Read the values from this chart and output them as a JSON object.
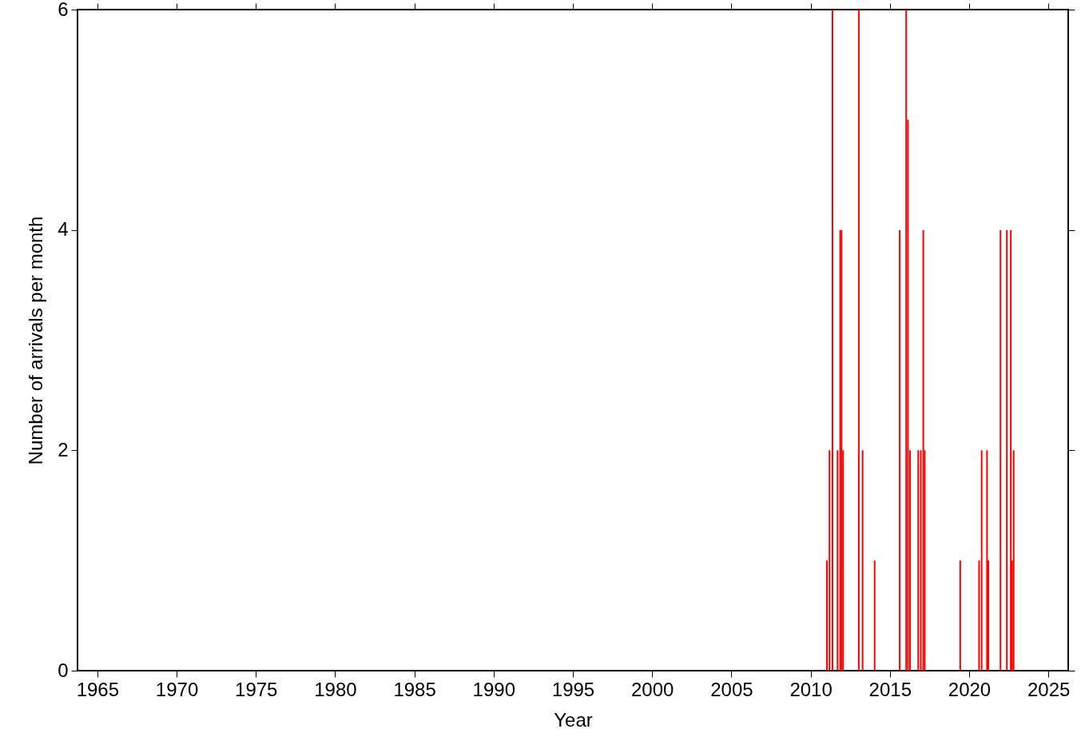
{
  "chart_data": {
    "type": "bar",
    "xlabel": "Year",
    "ylabel": "Number of arrivals per month",
    "color": "#ff0000",
    "x": [
      2011.03,
      2011.19,
      2011.38,
      2011.7,
      2011.87,
      2011.95,
      2012.05,
      2013.04,
      2013.28,
      2014.04,
      2015.62,
      2016.03,
      2016.14,
      2016.27,
      2016.79,
      2016.95,
      2017.11,
      2017.2,
      2019.44,
      2020.63,
      2020.79,
      2021.13,
      2021.21,
      2021.98,
      2022.38,
      2022.63,
      2022.71,
      2022.81
    ],
    "values": [
      1,
      2,
      6,
      2,
      4,
      4,
      2,
      6,
      2,
      1,
      4,
      6,
      5,
      2,
      2,
      2,
      4,
      2,
      1,
      1,
      2,
      2,
      1,
      4,
      4,
      4,
      1,
      2
    ],
    "xlim": [
      1964,
      2026
    ],
    "xticks": [
      1965,
      1970,
      1975,
      1980,
      1985,
      1990,
      1995,
      2000,
      2005,
      2010,
      2015,
      2020,
      2025
    ],
    "ylim": [
      0,
      6
    ],
    "yticks": [
      0,
      2,
      4,
      6
    ],
    "grid": false
  }
}
